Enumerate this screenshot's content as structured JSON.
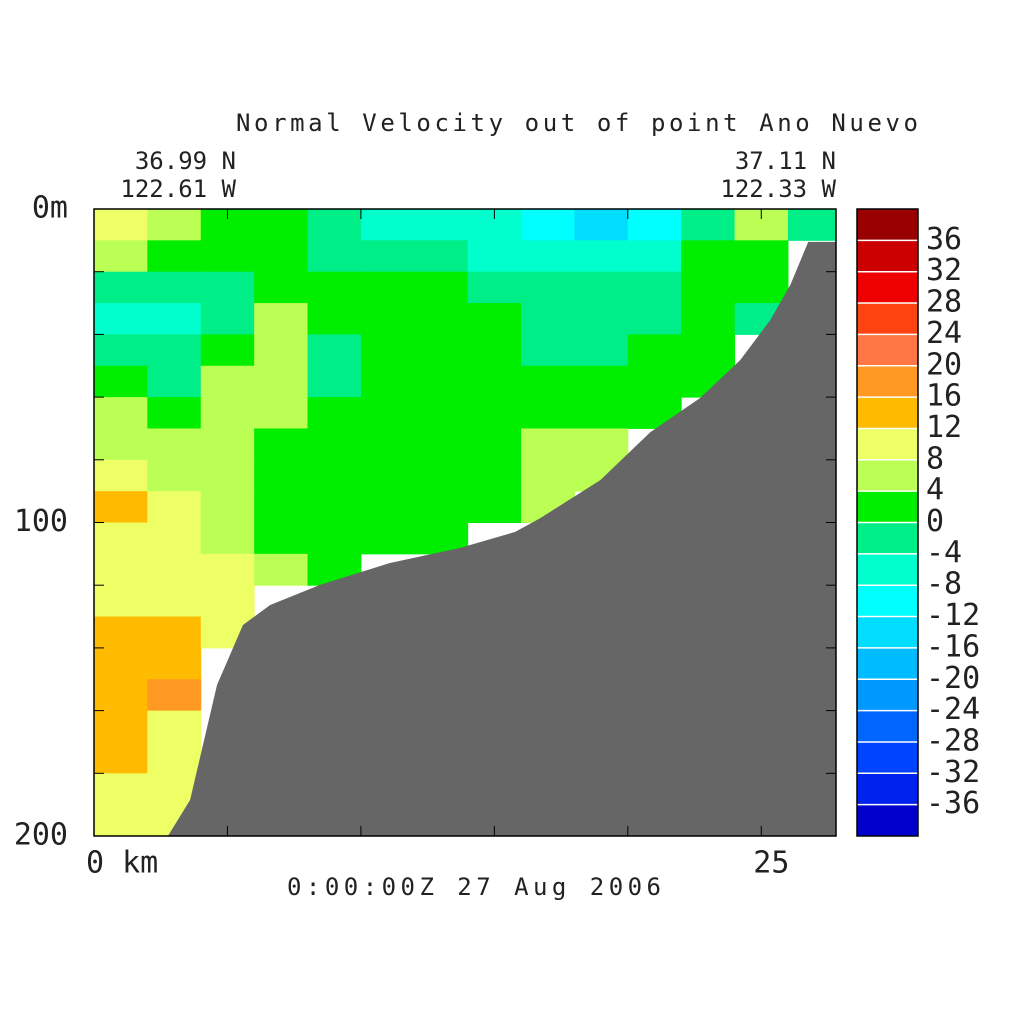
{
  "chart_data": {
    "type": "contour",
    "title": "Normal Velocity out of point Ano Nuevo",
    "start_lat": "36.99 N",
    "start_lon": "122.61 W",
    "end_lat": "37.11 N",
    "end_lon": "122.33 W",
    "time": "0:00:00Z  27 Aug 2006",
    "xlim": [
      0,
      27.8
    ],
    "ylim": [
      0,
      200
    ],
    "y_inverted": true,
    "xticks": [
      {
        "value": 0,
        "label": "0 km"
      },
      25
    ],
    "xminor_ticks": [
      5,
      10,
      15,
      20
    ],
    "yticks": [
      {
        "value": 0,
        "label": "0m"
      },
      100,
      200
    ],
    "yminor_ticks": [
      20,
      40,
      60,
      80,
      120,
      140,
      160,
      180
    ],
    "x": [
      1,
      3,
      5,
      7,
      9,
      11,
      13,
      15,
      17,
      19,
      21,
      23,
      25,
      27
    ],
    "y": [
      5,
      15,
      25,
      35,
      45,
      55,
      65,
      75,
      85,
      95,
      105,
      115,
      125,
      135,
      145,
      155,
      165,
      175,
      185,
      195
    ],
    "z": [
      [
        10,
        6,
        2,
        2,
        -2,
        -6,
        -6,
        -6,
        -10,
        -14,
        -10,
        -2,
        6,
        -2
      ],
      [
        6,
        2,
        2,
        2,
        -2,
        -2,
        -2,
        -6,
        -6,
        -6,
        -6,
        2,
        2,
        null
      ],
      [
        -2,
        -2,
        -2,
        2,
        2,
        2,
        2,
        -2,
        -2,
        -2,
        -2,
        2,
        2,
        null
      ],
      [
        -6,
        -6,
        -2,
        6,
        2,
        2,
        2,
        2,
        -2,
        -2,
        -2,
        2,
        -2,
        null
      ],
      [
        -2,
        -2,
        2,
        6,
        -2,
        2,
        2,
        2,
        -2,
        -2,
        2,
        2,
        null,
        null
      ],
      [
        2,
        -2,
        6,
        6,
        -2,
        2,
        2,
        2,
        2,
        2,
        2,
        2,
        null,
        null
      ],
      [
        6,
        2,
        6,
        6,
        2,
        2,
        2,
        2,
        2,
        2,
        2,
        null,
        null,
        null
      ],
      [
        6,
        6,
        6,
        2,
        2,
        2,
        2,
        2,
        6,
        6,
        null,
        null,
        null,
        null
      ],
      [
        10,
        6,
        6,
        2,
        2,
        2,
        2,
        2,
        6,
        6,
        null,
        null,
        null,
        null
      ],
      [
        14,
        10,
        6,
        2,
        2,
        2,
        2,
        2,
        6,
        null,
        null,
        null,
        null,
        null
      ],
      [
        10,
        10,
        6,
        2,
        2,
        2,
        2,
        null,
        null,
        null,
        null,
        null,
        null,
        null
      ],
      [
        10,
        10,
        10,
        6,
        2,
        null,
        null,
        null,
        null,
        null,
        null,
        null,
        null,
        null
      ],
      [
        10,
        10,
        10,
        null,
        null,
        null,
        null,
        null,
        null,
        null,
        null,
        null,
        null,
        null
      ],
      [
        14,
        14,
        10,
        null,
        null,
        null,
        null,
        null,
        null,
        null,
        null,
        null,
        null,
        null
      ],
      [
        14,
        14,
        null,
        null,
        null,
        null,
        null,
        null,
        null,
        null,
        null,
        null,
        null,
        null
      ],
      [
        14,
        18,
        null,
        null,
        null,
        null,
        null,
        null,
        null,
        null,
        null,
        null,
        null,
        null
      ],
      [
        14,
        10,
        null,
        null,
        null,
        null,
        null,
        null,
        null,
        null,
        null,
        null,
        null,
        null
      ],
      [
        14,
        10,
        null,
        null,
        null,
        null,
        null,
        null,
        null,
        null,
        null,
        null,
        null,
        null
      ],
      [
        10,
        10,
        null,
        null,
        null,
        null,
        null,
        null,
        null,
        null,
        null,
        null,
        null,
        null
      ],
      [
        10,
        10,
        null,
        null,
        null,
        null,
        null,
        null,
        null,
        null,
        null,
        null,
        null,
        null
      ]
    ],
    "bathymetry": {
      "color": "#666666",
      "x": [
        2.77,
        3.6,
        4.61,
        5.58,
        6.6,
        8.47,
        11.09,
        13.72,
        15.78,
        16.72,
        18.97,
        20.84,
        22.71,
        24.21,
        25.34,
        26.09,
        26.76,
        27.8
      ],
      "depth": [
        200,
        188.5,
        151.8,
        132.7,
        126.3,
        119.9,
        112.9,
        108.1,
        103,
        98.6,
        86.5,
        71.2,
        60.3,
        48.2,
        35.4,
        24.2,
        10.5,
        10.5
      ]
    },
    "colorbar": {
      "levels": [
        -40,
        -36,
        -32,
        -28,
        -24,
        -20,
        -16,
        -12,
        -8,
        -4,
        0,
        4,
        8,
        12,
        16,
        20,
        24,
        28,
        32,
        36,
        40
      ],
      "colors": [
        "#0000cc",
        "#0022ee",
        "#0044ff",
        "#0066ff",
        "#0099ff",
        "#00bbff",
        "#00ddff",
        "#00ffff",
        "#00ffcc",
        "#00ee88",
        "#00ee00",
        "#bbff55",
        "#eeff66",
        "#ffbb00",
        "#ff9922",
        "#ff7744",
        "#ff4411",
        "#ee0000",
        "#cc0000",
        "#990000"
      ],
      "ticks": [
        -36,
        -32,
        -28,
        -24,
        -20,
        -16,
        -12,
        -8,
        -4,
        0,
        4,
        8,
        12,
        16,
        20,
        24,
        28,
        32,
        36
      ]
    }
  }
}
